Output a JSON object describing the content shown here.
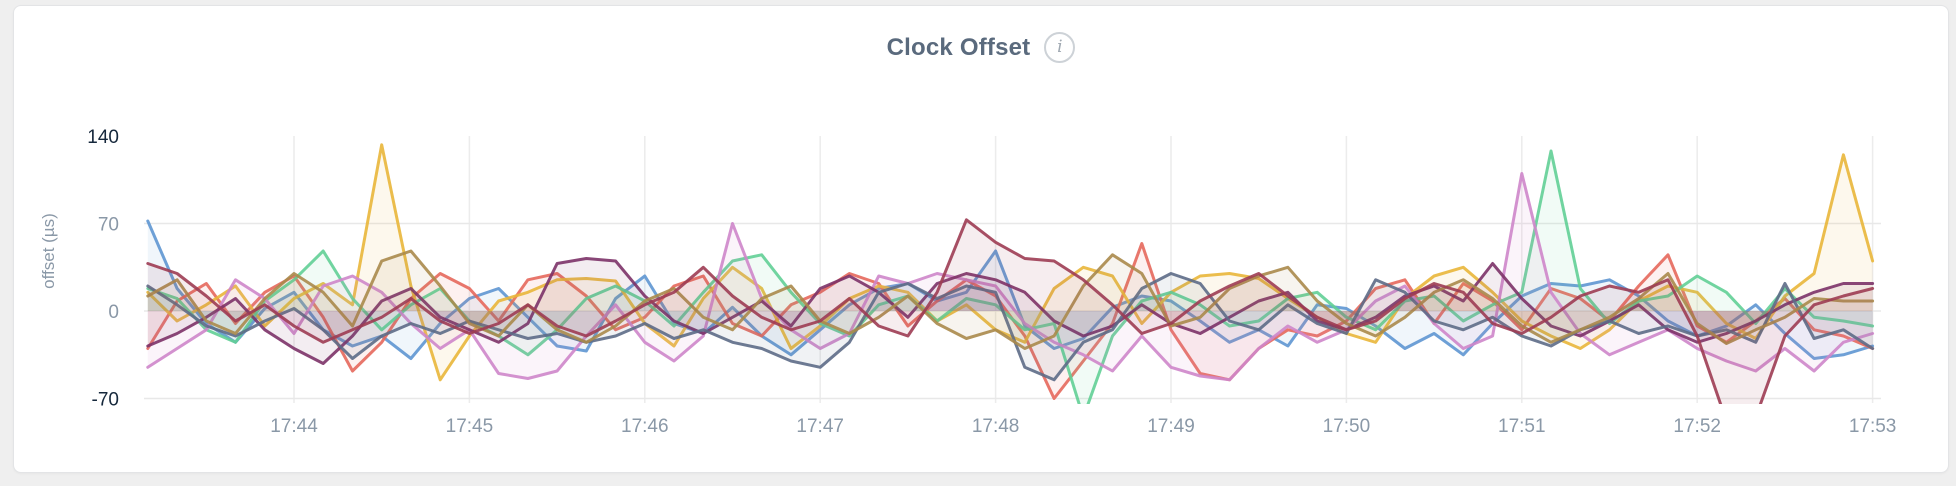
{
  "header": {
    "title": "Clock Offset",
    "info_glyph": "i"
  },
  "chart_data": {
    "type": "line",
    "title": "Clock Offset",
    "xlabel": "",
    "ylabel": "offset (µs)",
    "legend": "none",
    "grid": "on",
    "x_axis": {
      "tick_labels": [
        "17:44",
        "17:45",
        "17:46",
        "17:47",
        "17:48",
        "17:49",
        "17:50",
        "17:51",
        "17:52",
        "17:53"
      ],
      "window_start": "17:43:10",
      "window_end": "17:53:00",
      "sample_interval_seconds": 10
    },
    "y_axis": {
      "ticks": [
        {
          "label": "140",
          "value": 140,
          "strong": true
        },
        {
          "label": "70",
          "value": 70,
          "strong": false
        },
        {
          "label": "0",
          "value": 0,
          "strong": false
        },
        {
          "label": "-70",
          "value": -70,
          "strong": true
        }
      ],
      "grid_values": [
        70,
        0,
        -70
      ],
      "range": [
        -74,
        145
      ]
    },
    "series": [
      {
        "name": "series-blue",
        "color": "#5e96d2",
        "values": [
          72,
          18,
          -10,
          -25,
          2,
          15,
          -15,
          -28,
          -20,
          -38,
          -10,
          10,
          18,
          -5,
          -28,
          -32,
          10,
          28,
          -10,
          -18,
          3,
          -20,
          -35,
          -15,
          5,
          18,
          22,
          8,
          15,
          48,
          -12,
          -30,
          -22,
          3,
          12,
          8,
          -8,
          -25,
          -15,
          -28,
          5,
          2,
          -12,
          -30,
          -18,
          -35,
          -10,
          12,
          22,
          20,
          25,
          12,
          -8,
          -20,
          -12,
          5,
          -18,
          -38,
          -35,
          -28
        ]
      },
      {
        "name": "series-coral",
        "color": "#e5685c",
        "values": [
          -30,
          8,
          22,
          -10,
          15,
          28,
          -5,
          -48,
          -25,
          10,
          30,
          18,
          -8,
          25,
          30,
          12,
          -15,
          -5,
          20,
          28,
          -10,
          -20,
          5,
          15,
          30,
          22,
          -12,
          8,
          25,
          12,
          -20,
          -70,
          -40,
          -10,
          54,
          -15,
          -50,
          -55,
          -30,
          -15,
          -20,
          -8,
          18,
          25,
          -10,
          22,
          8,
          -15,
          18,
          10,
          -8,
          20,
          45,
          -12,
          -25,
          -8,
          10,
          -15,
          -20,
          -30
        ]
      },
      {
        "name": "series-gold",
        "color": "#e9b63a",
        "values": [
          15,
          -8,
          5,
          20,
          -12,
          10,
          22,
          5,
          133,
          20,
          -55,
          -20,
          8,
          15,
          25,
          26,
          24,
          -10,
          -28,
          10,
          35,
          18,
          -30,
          -12,
          10,
          20,
          15,
          -8,
          5,
          -15,
          -25,
          18,
          35,
          28,
          -10,
          15,
          28,
          30,
          26,
          10,
          -5,
          -18,
          -25,
          10,
          28,
          35,
          15,
          -8,
          -20,
          -30,
          -15,
          8,
          20,
          15,
          -10,
          -22,
          12,
          30,
          125,
          40
        ]
      },
      {
        "name": "series-mint",
        "color": "#62cf96",
        "values": [
          18,
          10,
          -15,
          -25,
          8,
          25,
          48,
          10,
          -15,
          5,
          18,
          -8,
          -20,
          -35,
          -15,
          10,
          20,
          8,
          -12,
          15,
          40,
          45,
          15,
          -10,
          -20,
          5,
          12,
          -8,
          10,
          5,
          -15,
          -10,
          -85,
          -20,
          8,
          15,
          5,
          -12,
          -8,
          10,
          15,
          -5,
          -15,
          8,
          12,
          -8,
          5,
          15,
          128,
          18,
          -10,
          8,
          12,
          28,
          15,
          -10,
          18,
          -5,
          -8,
          -12
        ]
      },
      {
        "name": "series-orchid",
        "color": "#ce86ca",
        "values": [
          -45,
          -30,
          -15,
          25,
          10,
          -18,
          20,
          28,
          15,
          -10,
          -30,
          -15,
          -50,
          -54,
          -48,
          -20,
          5,
          -25,
          -40,
          -20,
          70,
          10,
          -15,
          -30,
          -18,
          28,
          22,
          30,
          25,
          20,
          -10,
          -25,
          -35,
          -48,
          -20,
          -45,
          -52,
          -55,
          -30,
          -12,
          -25,
          -15,
          8,
          20,
          -10,
          -30,
          -20,
          110,
          15,
          -18,
          -35,
          -25,
          -15,
          -30,
          -40,
          -48,
          -30,
          -48,
          -25,
          -18
        ]
      },
      {
        "name": "series-plum",
        "color": "#7c3268",
        "values": [
          -28,
          -18,
          -5,
          10,
          -15,
          -30,
          -42,
          -20,
          8,
          18,
          -5,
          -15,
          -25,
          -10,
          38,
          42,
          40,
          12,
          -8,
          -18,
          -5,
          8,
          -12,
          18,
          28,
          15,
          -5,
          22,
          30,
          25,
          15,
          -8,
          -20,
          -12,
          5,
          -10,
          -18,
          -5,
          8,
          15,
          -8,
          -15,
          -5,
          12,
          20,
          8,
          38,
          10,
          -12,
          -20,
          -8,
          5,
          -15,
          -25,
          -18,
          -8,
          5,
          15,
          22,
          22
        ]
      },
      {
        "name": "series-slate",
        "color": "#5d6c87",
        "values": [
          20,
          5,
          -12,
          -20,
          -8,
          2,
          -15,
          -38,
          -20,
          -10,
          -18,
          -8,
          -15,
          -22,
          -18,
          -25,
          -20,
          -10,
          -22,
          -15,
          -25,
          -30,
          -40,
          -45,
          -25,
          15,
          22,
          10,
          20,
          15,
          -45,
          -55,
          -25,
          -15,
          18,
          30,
          22,
          -8,
          -15,
          5,
          -10,
          -18,
          25,
          15,
          -8,
          -15,
          -5,
          -20,
          -28,
          -15,
          -8,
          -18,
          -12,
          -20,
          -15,
          -25,
          22,
          -22,
          -15,
          -30
        ]
      },
      {
        "name": "series-tan",
        "color": "#aa8a4b",
        "values": [
          12,
          25,
          -8,
          -18,
          10,
          30,
          15,
          -12,
          40,
          48,
          20,
          -10,
          -20,
          5,
          -15,
          -25,
          -12,
          8,
          18,
          -5,
          -15,
          10,
          20,
          -8,
          -18,
          -5,
          12,
          -10,
          -22,
          -15,
          -30,
          -20,
          20,
          45,
          30,
          -12,
          -5,
          18,
          28,
          35,
          8,
          -10,
          -20,
          -5,
          15,
          25,
          10,
          -12,
          -25,
          -15,
          -5,
          10,
          30,
          -10,
          -26,
          -15,
          -5,
          10,
          8,
          8
        ]
      },
      {
        "name": "series-maroon",
        "color": "#9d3c53",
        "values": [
          38,
          30,
          12,
          -8,
          5,
          -12,
          -25,
          -15,
          -5,
          10,
          -8,
          -18,
          -10,
          5,
          -12,
          -20,
          -8,
          5,
          15,
          35,
          12,
          -5,
          -15,
          -8,
          10,
          -12,
          -20,
          15,
          73,
          55,
          42,
          40,
          25,
          5,
          -18,
          -10,
          8,
          20,
          30,
          12,
          -5,
          -15,
          -8,
          10,
          22,
          15,
          -10,
          -18,
          -5,
          12,
          20,
          15,
          25,
          -20,
          -88,
          -85,
          -20,
          5,
          12,
          18
        ]
      }
    ]
  }
}
